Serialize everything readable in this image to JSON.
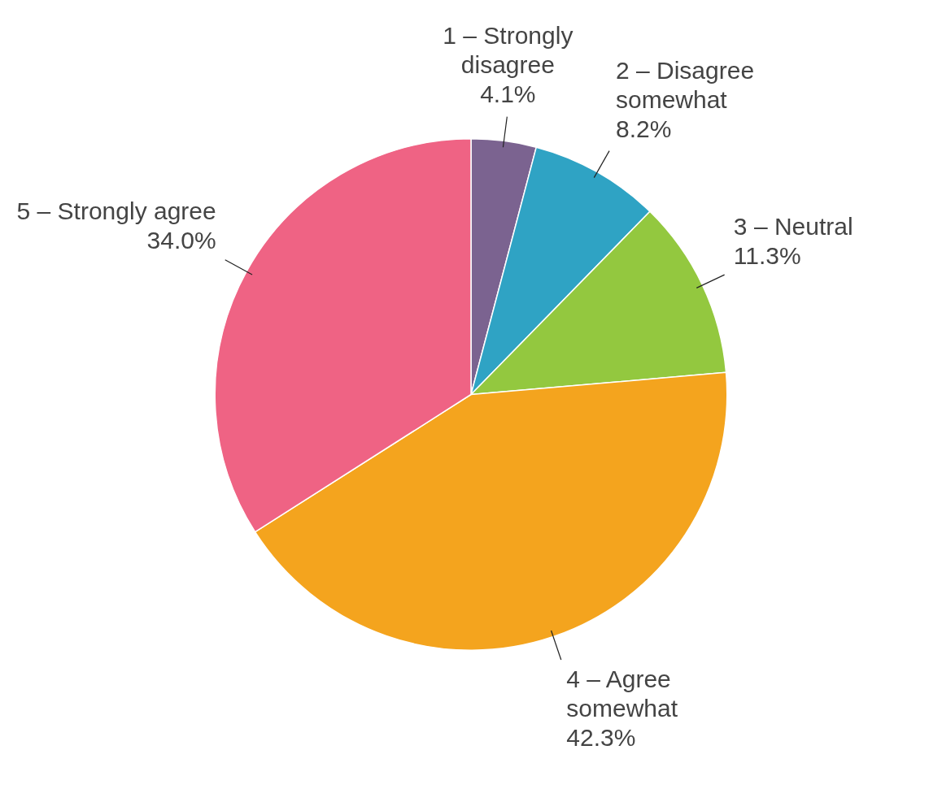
{
  "chart_data": {
    "type": "pie",
    "categories": [
      "1 – Strongly disagree",
      "2 – Disagree somewhat",
      "3 – Neutral",
      "4 – Agree somewhat",
      "5 – Strongly agree"
    ],
    "values": [
      4.1,
      8.2,
      11.3,
      42.3,
      34.0
    ],
    "value_labels": [
      "4.1%",
      "8.2%",
      "11.3%",
      "42.3%",
      "34.0%"
    ],
    "colors": [
      "#7b6390",
      "#2fa3c4",
      "#93c83f",
      "#f4a41e",
      "#ef6384"
    ],
    "legend": false
  }
}
